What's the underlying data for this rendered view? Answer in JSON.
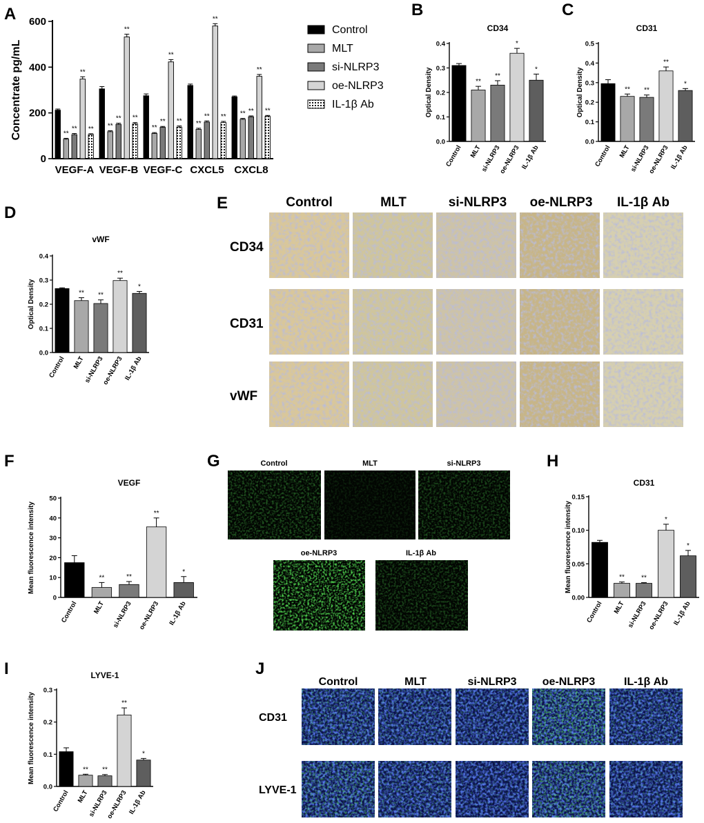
{
  "panels": {
    "A": "A",
    "B": "B",
    "C": "C",
    "D": "D",
    "E": "E",
    "F": "F",
    "G": "G",
    "H": "H",
    "I": "I",
    "J": "J"
  },
  "groups": [
    "Control",
    "MLT",
    "si-NLRP3",
    "oe-NLRP3",
    "IL-1β Ab"
  ],
  "colors": {
    "control": "#000000",
    "mlt": "#a8a8a8",
    "si": "#7a7a7a",
    "oe": "#d4d4d4",
    "il": "#5e5e5e",
    "axis": "#000000"
  },
  "chart_data": [
    {
      "panel": "A",
      "type": "bar",
      "categories": [
        "VEGF-A",
        "VEGF-B",
        "VEGF-C",
        "CXCL5",
        "CXCL8"
      ],
      "ylabel": "Concentrate pg/mL",
      "ylim": [
        0,
        600
      ],
      "yticks": [
        0,
        200,
        400,
        600
      ],
      "legend_position": "right",
      "series": [
        {
          "name": "Control",
          "values": [
            212,
            305,
            275,
            320,
            270
          ],
          "errors": [
            5,
            10,
            8,
            6,
            4
          ],
          "sig": [
            "",
            "",
            "",
            "",
            ""
          ]
        },
        {
          "name": "MLT",
          "values": [
            85,
            118,
            110,
            128,
            172
          ],
          "errors": [
            4,
            4,
            4,
            5,
            4
          ],
          "sig": [
            "**",
            "**",
            "**",
            "**",
            "**"
          ]
        },
        {
          "name": "si-NLRP3",
          "values": [
            105,
            150,
            137,
            160,
            183
          ],
          "errors": [
            5,
            5,
            4,
            5,
            4
          ],
          "sig": [
            "**",
            "**",
            "**",
            "**",
            "**"
          ]
        },
        {
          "name": "oe-NLRP3",
          "values": [
            348,
            532,
            423,
            580,
            360
          ],
          "errors": [
            10,
            12,
            10,
            10,
            8
          ],
          "sig": [
            "**",
            "**",
            "**",
            "**",
            "**"
          ]
        },
        {
          "name": "IL-1β Ab",
          "values": [
            105,
            152,
            138,
            158,
            185
          ],
          "errors": [
            4,
            6,
            5,
            5,
            4
          ],
          "sig": [
            "**",
            "**",
            "**",
            "**",
            "**"
          ]
        }
      ]
    },
    {
      "panel": "B",
      "type": "bar",
      "title": "CD34",
      "ylabel": "Optical Density",
      "categories": [
        "Control",
        "MLT",
        "si-NLRP3",
        "oe-NLRP3",
        "IL-1β Ab"
      ],
      "values": [
        0.31,
        0.21,
        0.23,
        0.36,
        0.25
      ],
      "errors": [
        0.008,
        0.015,
        0.018,
        0.02,
        0.025
      ],
      "sig": [
        "",
        "**",
        "**",
        "*",
        "*"
      ],
      "ylim": [
        0,
        0.4
      ],
      "yticks": [
        "0.0",
        "0.1",
        "0.2",
        "0.3",
        "0.4"
      ]
    },
    {
      "panel": "C",
      "type": "bar",
      "title": "CD31",
      "ylabel": "Optical Density",
      "categories": [
        "Control",
        "MLT",
        "si-NLRP3",
        "oe-NLRP3",
        "IL-1β Ab"
      ],
      "values": [
        0.295,
        0.23,
        0.225,
        0.36,
        0.26
      ],
      "errors": [
        0.02,
        0.012,
        0.012,
        0.02,
        0.01
      ],
      "sig": [
        "",
        "**",
        "**",
        "**",
        "*"
      ],
      "ylim": [
        0,
        0.5
      ],
      "yticks": [
        "0.0",
        "0.1",
        "0.2",
        "0.3",
        "0.4",
        "0.5"
      ]
    },
    {
      "panel": "D",
      "type": "bar",
      "title": "vWF",
      "ylabel": "Optical Density",
      "categories": [
        "Control",
        "MLT",
        "si-NLRP3",
        "oe-NLRP3",
        "IL-1β Ab"
      ],
      "values": [
        0.265,
        0.215,
        0.203,
        0.298,
        0.245
      ],
      "errors": [
        0.003,
        0.012,
        0.015,
        0.01,
        0.008
      ],
      "sig": [
        "",
        "**",
        "**",
        "**",
        "*"
      ],
      "ylim": [
        0,
        0.4
      ],
      "yticks": [
        "0.0",
        "0.1",
        "0.2",
        "0.3",
        "0.4"
      ]
    },
    {
      "panel": "F",
      "type": "bar",
      "title": "VEGF",
      "ylabel": "Mean fluorescence intensity",
      "categories": [
        "Control",
        "MLT",
        "si-NLRP3",
        "oe-NLRP3",
        "IL-1β Ab"
      ],
      "values": [
        17.5,
        5,
        6.5,
        35.5,
        7.5
      ],
      "errors": [
        3.5,
        2.5,
        1.5,
        4.5,
        3
      ],
      "sig": [
        "",
        "**",
        "**",
        "**",
        "*"
      ],
      "ylim": [
        0,
        50
      ],
      "yticks": [
        "0",
        "10",
        "20",
        "30",
        "40",
        "50"
      ]
    },
    {
      "panel": "H",
      "type": "bar",
      "title": "CD31",
      "ylabel": "Mean fluorescence intensity",
      "categories": [
        "Control",
        "MLT",
        "si-NLRP3",
        "oe-NLRP3",
        "IL-1β Ab"
      ],
      "values": [
        0.082,
        0.021,
        0.021,
        0.1,
        0.062
      ],
      "errors": [
        0.003,
        0.002,
        0.001,
        0.009,
        0.008
      ],
      "sig": [
        "",
        "**",
        "**",
        "*",
        "*"
      ],
      "ylim": [
        0,
        0.15
      ],
      "yticks": [
        "0.00",
        "0.05",
        "0.10",
        "0.15"
      ]
    },
    {
      "panel": "I",
      "type": "bar",
      "title": "LYVE-1",
      "ylabel": "Mean fluorescence intensity",
      "categories": [
        "Control",
        "MLT",
        "si-NLRP3",
        "oe-NLRP3",
        "IL-1β Ab"
      ],
      "values": [
        0.108,
        0.035,
        0.033,
        0.222,
        0.082
      ],
      "errors": [
        0.012,
        0.003,
        0.004,
        0.022,
        0.005
      ],
      "sig": [
        "",
        "**",
        "**",
        "**",
        "*"
      ],
      "ylim": [
        0,
        0.3
      ],
      "yticks": [
        "0.0",
        "0.1",
        "0.2",
        "0.3"
      ]
    }
  ],
  "panel_E": {
    "columns": [
      "Control",
      "MLT",
      "si-NLRP3",
      "oe-NLRP3",
      "IL-1β Ab"
    ],
    "rows": [
      "CD34",
      "CD31",
      "vWF"
    ]
  },
  "panel_G": {
    "labels": [
      "Control",
      "MLT",
      "si-NLRP3",
      "oe-NLRP3",
      "IL-1β Ab"
    ]
  },
  "panel_J": {
    "columns": [
      "Control",
      "MLT",
      "si-NLRP3",
      "oe-NLRP3",
      "IL-1β Ab"
    ],
    "rows": [
      "CD31",
      "LYVE-1"
    ]
  }
}
